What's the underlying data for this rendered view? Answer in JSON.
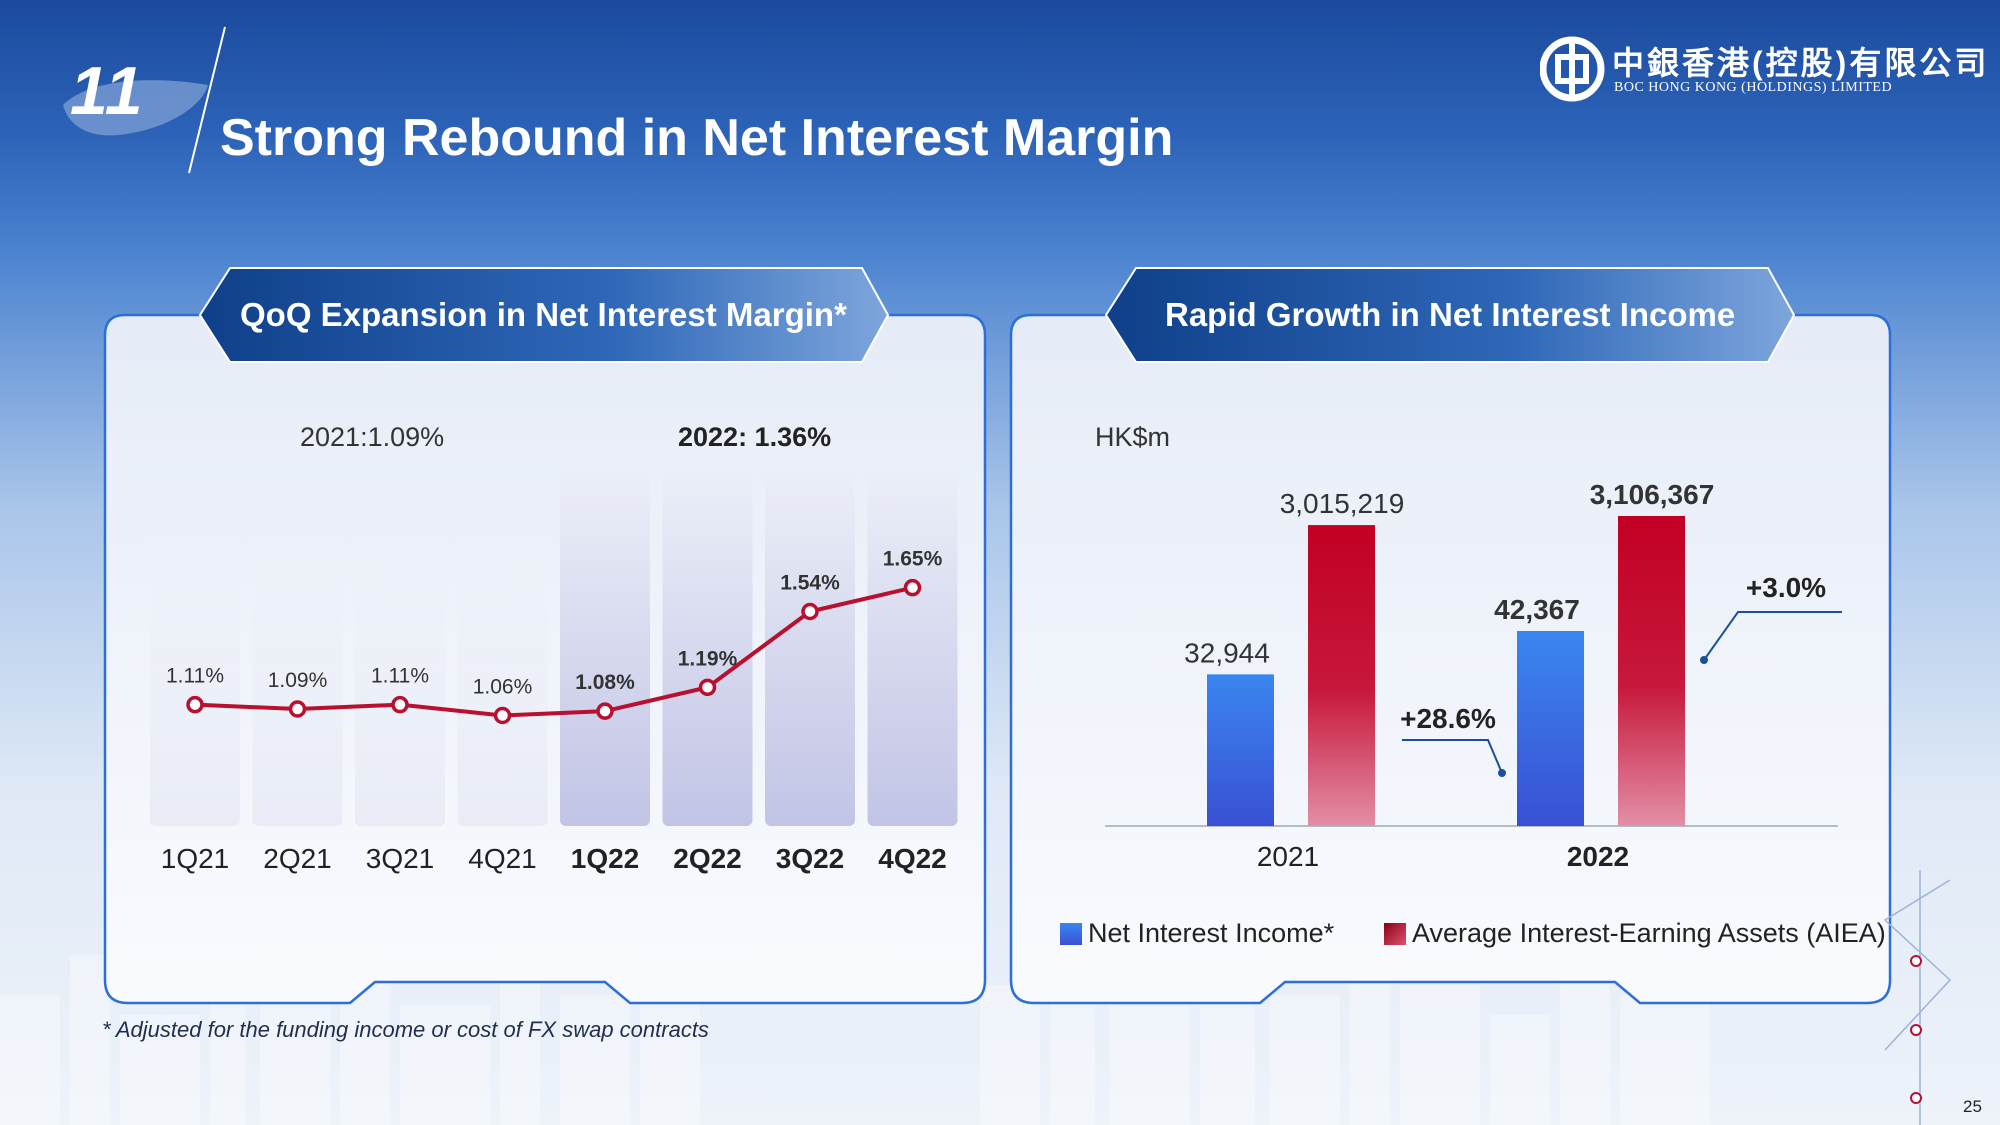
{
  "slide": {
    "section_number": "11",
    "title": "Strong Rebound in Net Interest Margin",
    "logo_cn": "中銀香港(控股)有限公司",
    "logo_en": "BOC HONG KONG (HOLDINGS) LIMITED",
    "footnote": "* Adjusted for the funding income or cost of FX swap contracts",
    "page_number": "25"
  },
  "colors": {
    "line": "#b8102e",
    "blue_bar": "#2d63dc",
    "red_bar": "#c20024",
    "tab": "#1a4f9c"
  },
  "chart_data": [
    {
      "type": "line",
      "title": "QoQ Expansion in Net Interest Margin*",
      "annotations": [
        "2021:1.09%",
        "2022: 1.36%"
      ],
      "categories": [
        "1Q21",
        "2Q21",
        "3Q21",
        "4Q21",
        "1Q22",
        "2Q22",
        "3Q22",
        "4Q22"
      ],
      "values": [
        1.11,
        1.09,
        1.11,
        1.06,
        1.08,
        1.19,
        1.54,
        1.65
      ],
      "value_labels": [
        "1.11%",
        "1.09%",
        "1.11%",
        "1.06%",
        "1.08%",
        "1.19%",
        "1.54%",
        "1.65%"
      ],
      "bold_from_index": 4,
      "ylim": [
        0,
        2.2
      ]
    },
    {
      "type": "bar",
      "title": "Rapid Growth in Net Interest Income",
      "ylabel": "HK$m",
      "categories": [
        "2021",
        "2022"
      ],
      "series": [
        {
          "name": "Net Interest Income*",
          "values": [
            32944,
            42367
          ],
          "labels": [
            "32,944",
            "42,367"
          ]
        },
        {
          "name": "Average Interest-Earning Assets (AIEA)",
          "values": [
            3015219,
            3106367
          ],
          "labels": [
            "3,015,219",
            "3,106,367"
          ]
        }
      ],
      "growth_annotations": [
        "+28.6%",
        "+3.0%"
      ]
    }
  ]
}
